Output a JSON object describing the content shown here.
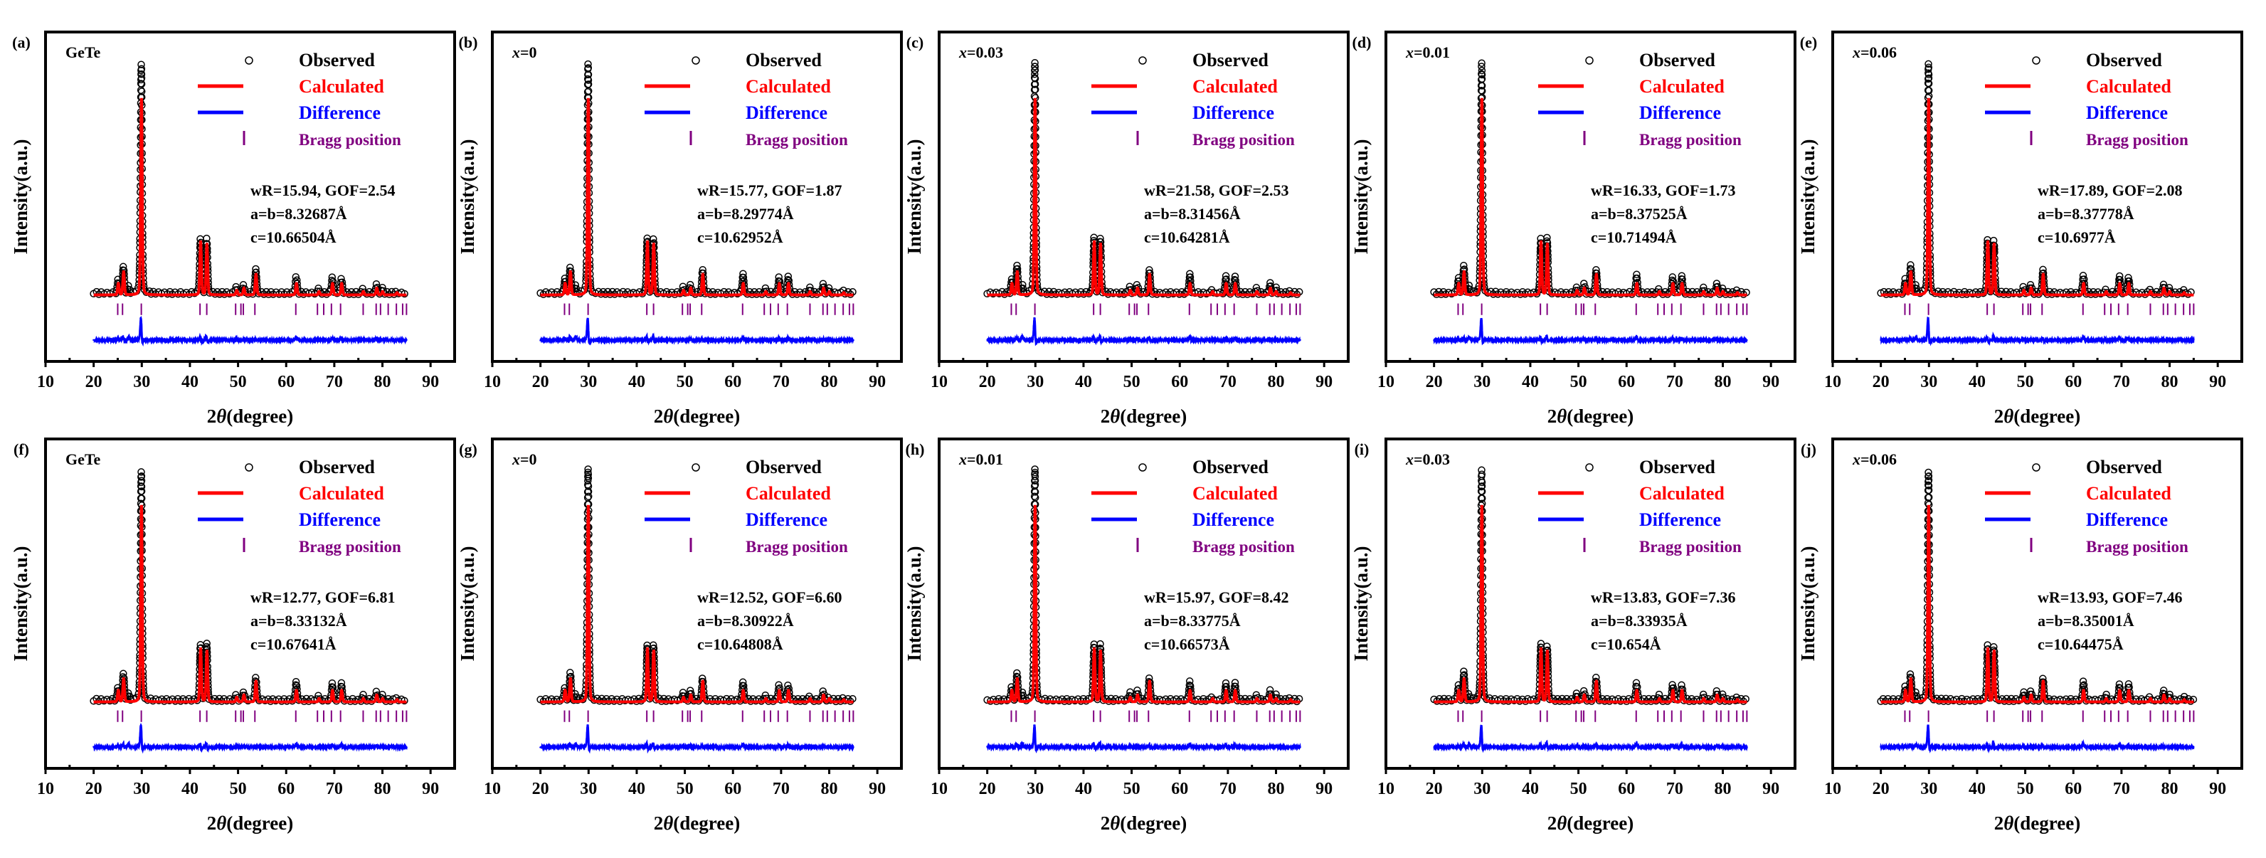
{
  "chart_data": {
    "type": "scatter",
    "description_labels": {
      "xlabel_prefix": "2",
      "xlabel_theta": "θ",
      "xlabel_suffix": "(degree)",
      "ylabel": "Intensity(a.u.)"
    },
    "xlim": [
      10,
      95
    ],
    "xticks": [
      10,
      20,
      30,
      40,
      50,
      60,
      70,
      80,
      90
    ],
    "ylim_normalized": [
      -0.3,
      1.13
    ],
    "legend": {
      "placement": "top-right",
      "entries": [
        {
          "label": "Observed",
          "color": "#000000",
          "marker": "circle"
        },
        {
          "label": "Calculated",
          "color": "#ff0000",
          "marker": "line"
        },
        {
          "label": "Difference",
          "color": "#0000ff",
          "marker": "line"
        },
        {
          "label": "Bragg position",
          "color": "#800080",
          "marker": "tick"
        }
      ]
    },
    "scan_range": [
      20,
      85
    ],
    "bragg_positions": [
      25.0,
      26.0,
      29.9,
      42.1,
      43.5,
      49.5,
      50.6,
      51.1,
      53.5,
      62.0,
      66.5,
      67.8,
      69.4,
      71.3,
      76.0,
      78.7,
      79.6,
      81.2,
      82.9,
      84.2,
      85.0
    ],
    "peaks": [
      {
        "pos": 25.1,
        "obs": 0.06,
        "calc": 0.05
      },
      {
        "pos": 26.2,
        "obs": 0.12,
        "calc": 0.1
      },
      {
        "pos": 27.3,
        "obs": 0.03,
        "calc": 0.0
      },
      {
        "pos": 29.9,
        "obs": 1.0,
        "calc": 0.85
      },
      {
        "pos": 42.2,
        "obs": 0.24,
        "calc": 0.23
      },
      {
        "pos": 43.5,
        "obs": 0.24,
        "calc": 0.22
      },
      {
        "pos": 49.7,
        "obs": 0.03,
        "calc": 0.02
      },
      {
        "pos": 51.2,
        "obs": 0.04,
        "calc": 0.03
      },
      {
        "pos": 53.7,
        "obs": 0.1,
        "calc": 0.09
      },
      {
        "pos": 62.1,
        "obs": 0.08,
        "calc": 0.05
      },
      {
        "pos": 66.8,
        "obs": 0.02,
        "calc": 0.015
      },
      {
        "pos": 69.6,
        "obs": 0.07,
        "calc": 0.05
      },
      {
        "pos": 71.5,
        "obs": 0.07,
        "calc": 0.05
      },
      {
        "pos": 76.0,
        "obs": 0.02,
        "calc": 0.015
      },
      {
        "pos": 78.8,
        "obs": 0.04,
        "calc": 0.03
      },
      {
        "pos": 80.0,
        "obs": 0.02,
        "calc": 0.015
      },
      {
        "pos": 83.0,
        "obs": 0.01,
        "calc": 0.01
      }
    ],
    "panels": [
      {
        "label": "(a)",
        "sample_var": "",
        "sample_value": "GeTe",
        "fit": "wR=15.94, GOF=2.54",
        "ab": "a=b=8.32687Å",
        "c": "c=10.66504Å"
      },
      {
        "label": "(b)",
        "sample_var": "x",
        "sample_value": "=0",
        "fit": "wR=15.77, GOF=1.87",
        "ab": "a=b=8.29774Å",
        "c": "c=10.62952Å"
      },
      {
        "label": "(c)",
        "sample_var": "x",
        "sample_value": "=0.03",
        "fit": "wR=21.58, GOF=2.53",
        "ab": "a=b=8.31456Å",
        "c": "c=10.64281Å"
      },
      {
        "label": "(d)",
        "sample_var": "x",
        "sample_value": "=0.01",
        "fit": "wR=16.33, GOF=1.73",
        "ab": "a=b=8.37525Å",
        "c": "c=10.71494Å"
      },
      {
        "label": "(e)",
        "sample_var": "x",
        "sample_value": "=0.06",
        "fit": "wR=17.89, GOF=2.08",
        "ab": "a=b=8.37778Å",
        "c": "c=10.6977Å"
      },
      {
        "label": "(f)",
        "sample_var": "",
        "sample_value": "GeTe",
        "fit": "wR=12.77, GOF=6.81",
        "ab": "a=b=8.33132Å",
        "c": "c=10.67641Å"
      },
      {
        "label": "(g)",
        "sample_var": "x",
        "sample_value": "=0",
        "fit": "wR=12.52, GOF=6.60",
        "ab": "a=b=8.30922Å",
        "c": "c=10.64808Å"
      },
      {
        "label": "(h)",
        "sample_var": "x",
        "sample_value": "=0.01",
        "fit": "wR=15.97, GOF=8.42",
        "ab": "a=b=8.33775Å",
        "c": "c=10.66573Å"
      },
      {
        "label": "(i)",
        "sample_var": "x",
        "sample_value": "=0.03",
        "fit": "wR=13.83, GOF=7.36",
        "ab": "a=b=8.33935Å",
        "c": "c=10.654Å"
      },
      {
        "label": "(j)",
        "sample_var": "x",
        "sample_value": "=0.06",
        "fit": "wR=13.93, GOF=7.46",
        "ab": "a=b=8.35001Å",
        "c": "c=10.64475Å"
      }
    ]
  }
}
